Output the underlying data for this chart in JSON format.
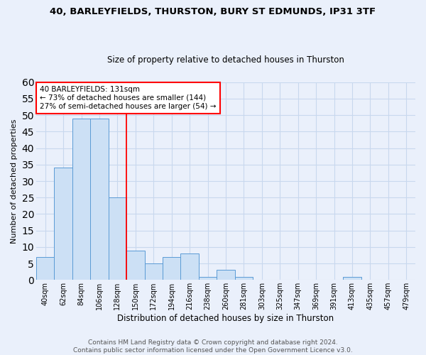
{
  "title1": "40, BARLEYFIELDS, THURSTON, BURY ST EDMUNDS, IP31 3TF",
  "title2": "Size of property relative to detached houses in Thurston",
  "xlabel": "Distribution of detached houses by size in Thurston",
  "ylabel": "Number of detached properties",
  "footer": "Contains HM Land Registry data © Crown copyright and database right 2024.\nContains public sector information licensed under the Open Government Licence v3.0.",
  "bin_labels": [
    "40sqm",
    "62sqm",
    "84sqm",
    "106sqm",
    "128sqm",
    "150sqm",
    "172sqm",
    "194sqm",
    "216sqm",
    "238sqm",
    "260sqm",
    "281sqm",
    "303sqm",
    "325sqm",
    "347sqm",
    "369sqm",
    "391sqm",
    "413sqm",
    "435sqm",
    "457sqm",
    "479sqm"
  ],
  "bar_values": [
    7,
    34,
    49,
    49,
    25,
    9,
    5,
    7,
    8,
    1,
    3,
    1,
    0,
    0,
    0,
    0,
    0,
    1,
    0,
    0,
    0
  ],
  "bar_color": "#cce0f5",
  "bar_edge_color": "#5b9bd5",
  "red_line_x": 4.5,
  "annotation_text": "40 BARLEYFIELDS: 131sqm\n← 73% of detached houses are smaller (144)\n27% of semi-detached houses are larger (54) →",
  "annotation_box_color": "white",
  "annotation_box_edge": "red",
  "ylim": [
    0,
    60
  ],
  "yticks": [
    0,
    5,
    10,
    15,
    20,
    25,
    30,
    35,
    40,
    45,
    50,
    55,
    60
  ],
  "bg_color": "#eaf0fb",
  "grid_color": "#c8d8ee",
  "title1_fontsize": 9.5,
  "title2_fontsize": 8.5,
  "ylabel_fontsize": 8,
  "xlabel_fontsize": 8.5,
  "tick_fontsize": 7,
  "footer_fontsize": 6.5
}
